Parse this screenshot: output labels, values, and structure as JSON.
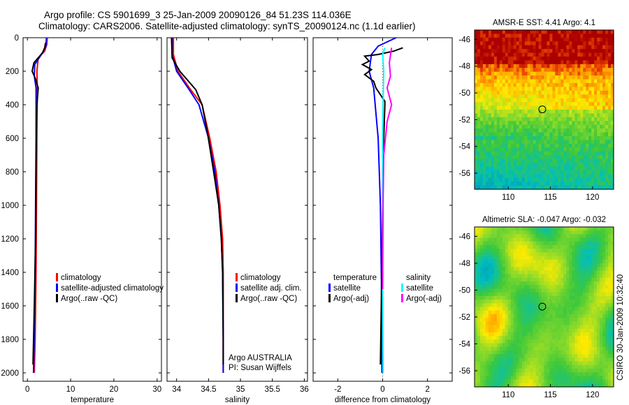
{
  "figure": {
    "title_line1": "Argo profile: CS 5901699_3 25-Jan-2009 20090126_84 51.23S 114.036E",
    "title_line2": "Climatology: CARS2006. Satellite-adjusted climatology: synTS_20090124.nc (1.1d earlier)",
    "side_label": "CSIRO 30-Jan-2009 10:32:40",
    "argo_label": "Argo AUSTRALIA",
    "pi_label": "PI: Susan Wijffels"
  },
  "colors": {
    "climatology": "#ff0000",
    "satellite": "#0000ff",
    "argo": "#000000",
    "sat_salinity": "#00ffff",
    "argo_salinity": "#ff00ff",
    "sst_high": "#aa0000"
  },
  "chart_data": [
    {
      "type": "line",
      "panel": "temperature",
      "xlabel": "temperature",
      "ylabel": "",
      "xlim": [
        -1,
        31
      ],
      "ylim": [
        2050,
        0
      ],
      "y_reversed": true,
      "xticks": [
        0,
        10,
        20,
        30
      ],
      "yticks": [
        0,
        200,
        400,
        600,
        800,
        1000,
        1200,
        1400,
        1600,
        1800,
        2000
      ],
      "legend": [
        "climatology",
        "satellite-adjusted climatology",
        "Argo(..raw -QC)"
      ],
      "series": [
        {
          "name": "climatology",
          "color": "#ff0000",
          "points": [
            [
              4.6,
              0
            ],
            [
              4.5,
              40
            ],
            [
              4.0,
              80
            ],
            [
              2.5,
              120
            ],
            [
              2.2,
              200
            ],
            [
              2.3,
              300
            ],
            [
              2.2,
              600
            ],
            [
              2.1,
              1000
            ],
            [
              2.0,
              1400
            ],
            [
              1.8,
              1800
            ],
            [
              1.6,
              2000
            ]
          ]
        },
        {
          "name": "satellite-adjusted climatology",
          "color": "#0000ff",
          "points": [
            [
              4.4,
              0
            ],
            [
              4.3,
              50
            ],
            [
              3.5,
              90
            ],
            [
              1.7,
              160
            ],
            [
              1.6,
              230
            ],
            [
              2.0,
              300
            ],
            [
              2.0,
              600
            ],
            [
              1.9,
              1000
            ],
            [
              1.8,
              1400
            ],
            [
              1.6,
              1800
            ],
            [
              1.4,
              2000
            ]
          ]
        },
        {
          "name": "Argo(..raw -QC)",
          "color": "#000000",
          "points": [
            [
              4.2,
              30
            ],
            [
              4.0,
              60
            ],
            [
              3.5,
              90
            ],
            [
              1.5,
              150
            ],
            [
              1.1,
              200
            ],
            [
              1.8,
              240
            ],
            [
              2.5,
              300
            ],
            [
              2.2,
              400
            ],
            [
              2.1,
              500
            ],
            [
              2.0,
              800
            ],
            [
              1.9,
              1200
            ],
            [
              1.6,
              1600
            ],
            [
              1.3,
              1950
            ]
          ]
        }
      ]
    },
    {
      "type": "line",
      "panel": "salinity",
      "xlabel": "salinity",
      "ylabel": "",
      "xlim": [
        33.85,
        36.05
      ],
      "ylim": [
        2050,
        0
      ],
      "y_reversed": true,
      "xticks": [
        34,
        34.5,
        35,
        35.5,
        36
      ],
      "legend": [
        "climatology",
        "satellite adj. clim.",
        "Argo(..raw -QC)"
      ],
      "series": [
        {
          "name": "climatology",
          "color": "#ff0000",
          "points": [
            [
              33.95,
              0
            ],
            [
              33.95,
              100
            ],
            [
              34.02,
              200
            ],
            [
              34.2,
              300
            ],
            [
              34.4,
              400
            ],
            [
              34.52,
              600
            ],
            [
              34.62,
              800
            ],
            [
              34.68,
              1000
            ],
            [
              34.72,
              1200
            ],
            [
              34.73,
              1400
            ],
            [
              34.73,
              1800
            ],
            [
              34.73,
              2000
            ]
          ]
        },
        {
          "name": "satellite adj. clim.",
          "color": "#0000ff",
          "points": [
            [
              33.93,
              0
            ],
            [
              33.93,
              100
            ],
            [
              34.0,
              200
            ],
            [
              34.18,
              300
            ],
            [
              34.35,
              400
            ],
            [
              34.5,
              600
            ],
            [
              34.6,
              800
            ],
            [
              34.66,
              1000
            ],
            [
              34.7,
              1200
            ],
            [
              34.72,
              1400
            ],
            [
              34.73,
              1800
            ],
            [
              34.73,
              2000
            ]
          ]
        },
        {
          "name": "Argo(..raw -QC)",
          "color": "#000000",
          "points": [
            [
              33.92,
              0
            ],
            [
              33.93,
              120
            ],
            [
              34.05,
              200
            ],
            [
              34.3,
              310
            ],
            [
              34.4,
              400
            ],
            [
              34.48,
              560
            ],
            [
              34.58,
              800
            ],
            [
              34.66,
              1000
            ],
            [
              34.7,
              1200
            ],
            [
              34.72,
              1400
            ],
            [
              34.73,
              1800
            ],
            [
              34.73,
              1950
            ]
          ]
        }
      ]
    },
    {
      "type": "line",
      "panel": "difference",
      "xlabel": "difference from climatology",
      "ylabel": "",
      "xlim": [
        -3.1,
        3.1
      ],
      "ylim": [
        2050,
        0
      ],
      "y_reversed": true,
      "xticks": [
        -2,
        0,
        2
      ],
      "legend": [
        "temperature",
        "satellite",
        "Argo(-adj)",
        "salinity",
        "satellite",
        "Argo(-adj)"
      ],
      "series": [
        {
          "name": "temperature satellite",
          "color": "#0000ff",
          "points": [
            [
              0.6,
              0
            ],
            [
              -0.2,
              50
            ],
            [
              -0.5,
              100
            ],
            [
              -0.6,
              200
            ],
            [
              -0.4,
              300
            ],
            [
              -0.2,
              600
            ],
            [
              -0.1,
              1000
            ],
            [
              -0.05,
              1500
            ],
            [
              -0.03,
              2000
            ]
          ]
        },
        {
          "name": "temperature Argo(-adj)",
          "color": "#000000",
          "points": [
            [
              0.9,
              60
            ],
            [
              0.5,
              80
            ],
            [
              -0.2,
              100
            ],
            [
              -0.8,
              110
            ],
            [
              -0.6,
              140
            ],
            [
              -0.9,
              160
            ],
            [
              -0.5,
              190
            ],
            [
              -0.8,
              220
            ],
            [
              -0.4,
              260
            ],
            [
              -0.3,
              300
            ],
            [
              0.1,
              380
            ],
            [
              0.1,
              400
            ],
            [
              0.05,
              600
            ],
            [
              0,
              1000
            ],
            [
              -0.05,
              1500
            ],
            [
              -0.1,
              1950
            ]
          ]
        },
        {
          "name": "salinity satellite",
          "color": "#00ffff",
          "points": [
            [
              0.1,
              60
            ],
            [
              0.0,
              100
            ],
            [
              0.05,
              200
            ],
            [
              0.02,
              400
            ],
            [
              0.0,
              600
            ],
            [
              0.0,
              1000
            ],
            [
              0.0,
              1500
            ],
            [
              0.02,
              2000
            ]
          ]
        },
        {
          "name": "salinity Argo(-adj)",
          "color": "#ff00ff",
          "points": [
            [
              0.4,
              60
            ],
            [
              0.3,
              150
            ],
            [
              0.35,
              230
            ],
            [
              0.2,
              300
            ],
            [
              0.3,
              350
            ],
            [
              0.4,
              400
            ],
            [
              0.2,
              500
            ],
            [
              0.05,
              700
            ],
            [
              0.02,
              1000
            ],
            [
              0.0,
              1500
            ]
          ]
        }
      ]
    },
    {
      "type": "heatmap",
      "panel": "sst",
      "title": "AMSR-E SST: 4.41 Argo: 4.1",
      "xlim": [
        106,
        122.5
      ],
      "ylim": [
        -57.2,
        -45.3
      ],
      "xticks": [
        110,
        115,
        120
      ],
      "yticks": [
        -46,
        -48,
        -50,
        -52,
        -54,
        -56
      ],
      "marker": {
        "lon": 114.036,
        "lat": -51.23
      }
    },
    {
      "type": "heatmap",
      "panel": "sla",
      "title": "Altimetric SLA: -0.047 Argo: -0.032",
      "xlim": [
        106,
        122.5
      ],
      "ylim": [
        -57.2,
        -45.3
      ],
      "xticks": [
        110,
        115,
        120
      ],
      "yticks": [
        -46,
        -48,
        -50,
        -52,
        -54,
        -56
      ],
      "marker": {
        "lon": 114.036,
        "lat": -51.23
      }
    }
  ]
}
